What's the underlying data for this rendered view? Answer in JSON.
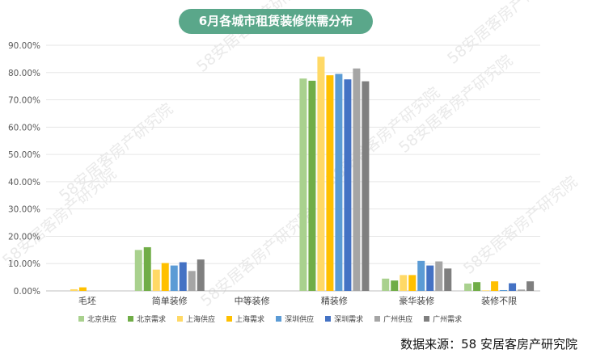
{
  "title": "6月各城市租赁装修供需分布",
  "source": "数据来源：58 安居客房产研究院",
  "watermark_text": "58安居客房产研究院",
  "chart_data": {
    "type": "bar",
    "title": "6月各城市租赁装修供需分布",
    "categories": [
      "毛坯",
      "简单装修",
      "中等装修",
      "精装修",
      "豪华装修",
      "装修不限"
    ],
    "ylim": [
      0,
      90
    ],
    "yticks": [
      "0.00%",
      "10.00%",
      "20.00%",
      "30.00%",
      "40.00%",
      "50.00%",
      "60.00%",
      "70.00%",
      "80.00%",
      "90.00%"
    ],
    "grid": true,
    "legend_position": "bottom",
    "series": [
      {
        "name": "北京供应",
        "color": "#a9d18e",
        "values": [
          0.0,
          15.0,
          0.0,
          77.8,
          4.5,
          2.7
        ]
      },
      {
        "name": "北京需求",
        "color": "#70ad47",
        "values": [
          0.0,
          16.0,
          0.0,
          77.0,
          3.8,
          3.2
        ]
      },
      {
        "name": "上海供应",
        "color": "#ffd966",
        "values": [
          0.6,
          7.8,
          0.0,
          85.8,
          5.8,
          0.2
        ]
      },
      {
        "name": "上海需求",
        "color": "#ffc000",
        "values": [
          1.3,
          10.2,
          0.0,
          79.0,
          5.8,
          3.5
        ]
      },
      {
        "name": "深圳供应",
        "color": "#5b9bd5",
        "values": [
          0.0,
          9.3,
          0.0,
          79.5,
          11.0,
          0.3
        ]
      },
      {
        "name": "深圳需求",
        "color": "#4472c4",
        "values": [
          0.0,
          10.5,
          0.0,
          77.5,
          9.3,
          2.8
        ]
      },
      {
        "name": "广州供应",
        "color": "#a5a5a5",
        "values": [
          0.0,
          7.3,
          0.0,
          81.5,
          10.8,
          0.5
        ]
      },
      {
        "name": "广州需求",
        "color": "#7f7f7f",
        "values": [
          0.0,
          11.5,
          0.0,
          76.8,
          8.2,
          3.5
        ]
      }
    ]
  }
}
